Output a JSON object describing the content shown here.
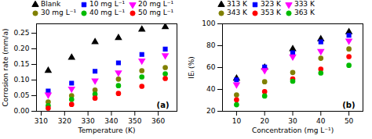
{
  "chart_data": [
    {
      "type": "scatter",
      "title": "(a)",
      "xlabel": "Temperature (K)",
      "ylabel": "Corrosion rate (mm/a)",
      "x": [
        313,
        323,
        333,
        343,
        353,
        363
      ],
      "series": [
        {
          "name": "Blank",
          "color": "#000000",
          "marker": "triangle-up",
          "values": [
            0.13,
            0.172,
            0.222,
            0.235,
            0.262,
            0.27
          ]
        },
        {
          "name": "10 mg L⁻¹",
          "color": "#0000FF",
          "marker": "square",
          "values": [
            0.065,
            0.09,
            0.128,
            0.155,
            0.182,
            0.199
          ]
        },
        {
          "name": "20 mg L⁻¹",
          "color": "#FF00FF",
          "marker": "triangle-down",
          "values": [
            0.053,
            0.072,
            0.098,
            0.124,
            0.162,
            0.179
          ]
        },
        {
          "name": "30 mg L⁻¹",
          "color": "#808000",
          "marker": "circle",
          "values": [
            0.03,
            0.05,
            0.068,
            0.103,
            0.13,
            0.14
          ]
        },
        {
          "name": "40 mg L⁻¹",
          "color": "#00BB00",
          "marker": "circle",
          "values": [
            0.018,
            0.038,
            0.055,
            0.082,
            0.11,
            0.12
          ]
        },
        {
          "name": "50 mg L⁻¹",
          "color": "#FF0000",
          "marker": "circle",
          "values": [
            0.01,
            0.022,
            0.042,
            0.057,
            0.08,
            0.105
          ]
        }
      ],
      "xlim": [
        308,
        368
      ],
      "ylim": [
        0,
        0.28
      ],
      "xticks": [
        310,
        320,
        330,
        340,
        350,
        360
      ],
      "yticks": [
        {
          "value": 0,
          "label": "0.00"
        },
        0.05,
        {
          "value": 0.1,
          "label": "0.10"
        },
        0.15,
        {
          "value": 0.2,
          "label": "0.20"
        },
        0.25
      ],
      "grid": false,
      "legend": "upper left"
    },
    {
      "type": "scatter",
      "title": "(b)",
      "xlabel": "Concentration (mg L⁻¹)",
      "ylabel": "IEᵢ (%)",
      "x": [
        10,
        20,
        30,
        40,
        50
      ],
      "series": [
        {
          "name": "313 K",
          "color": "#000000",
          "marker": "triangle-up",
          "values": [
            50.0,
            60.0,
            77.0,
            86.0,
            92.5
          ]
        },
        {
          "name": "323 K",
          "color": "#0000FF",
          "marker": "square",
          "values": [
            48.8,
            60.5,
            73.5,
            83.5,
            89.5
          ]
        },
        {
          "name": "333 K",
          "color": "#FF00FF",
          "marker": "triangle-down",
          "values": [
            44.5,
            57.5,
            70.0,
            75.0,
            84.5
          ]
        },
        {
          "name": "343 K",
          "color": "#808000",
          "marker": "circle",
          "values": [
            35.0,
            47.0,
            55.5,
            68.5,
            77.0
          ]
        },
        {
          "name": "353 K",
          "color": "#FF0000",
          "marker": "circle",
          "values": [
            30.5,
            38.0,
            49.5,
            58.5,
            70.0
          ]
        },
        {
          "name": "363 K",
          "color": "#00BB00",
          "marker": "circle",
          "values": [
            26.0,
            34.0,
            47.5,
            55.0,
            62.0
          ]
        }
      ],
      "xlim": [
        5,
        55
      ],
      "ylim": [
        20,
        100
      ],
      "xticks": [
        10,
        20,
        30,
        40,
        50
      ],
      "yticks": [
        20,
        40,
        60,
        80,
        100
      ],
      "grid": false,
      "legend": "upper left"
    }
  ]
}
